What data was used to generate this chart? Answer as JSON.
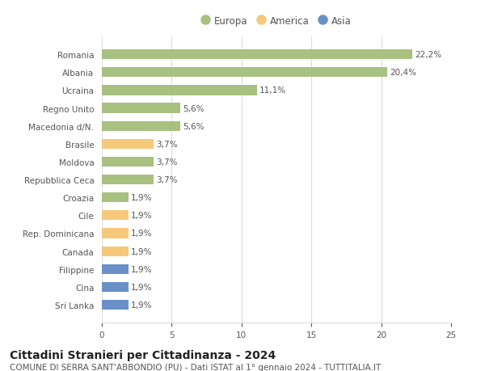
{
  "categories": [
    "Romania",
    "Albania",
    "Ucraina",
    "Regno Unito",
    "Macedonia d/N.",
    "Brasile",
    "Moldova",
    "Repubblica Ceca",
    "Croazia",
    "Cile",
    "Rep. Dominicana",
    "Canada",
    "Filippine",
    "Cina",
    "Sri Lanka"
  ],
  "values": [
    22.2,
    20.4,
    11.1,
    5.6,
    5.6,
    3.7,
    3.7,
    3.7,
    1.9,
    1.9,
    1.9,
    1.9,
    1.9,
    1.9,
    1.9
  ],
  "labels": [
    "22,2%",
    "20,4%",
    "11,1%",
    "5,6%",
    "5,6%",
    "3,7%",
    "3,7%",
    "3,7%",
    "1,9%",
    "1,9%",
    "1,9%",
    "1,9%",
    "1,9%",
    "1,9%",
    "1,9%"
  ],
  "continents": [
    "Europa",
    "Europa",
    "Europa",
    "Europa",
    "Europa",
    "America",
    "Europa",
    "Europa",
    "Europa",
    "America",
    "America",
    "America",
    "Asia",
    "Asia",
    "Asia"
  ],
  "colors": {
    "Europa": "#a8c080",
    "America": "#f5c87a",
    "Asia": "#6b8fc7"
  },
  "legend": [
    "Europa",
    "America",
    "Asia"
  ],
  "legend_colors": [
    "#a8c080",
    "#f5c87a",
    "#6b8fc7"
  ],
  "xlim": [
    0,
    25
  ],
  "xticks": [
    0,
    5,
    10,
    15,
    20,
    25
  ],
  "title": "Cittadini Stranieri per Cittadinanza - 2024",
  "subtitle": "COMUNE DI SERRA SANT'ABBONDIO (PU) - Dati ISTAT al 1° gennaio 2024 - TUTTITALIA.IT",
  "background_color": "#ffffff",
  "grid_color": "#dddddd",
  "bar_height": 0.55,
  "label_fontsize": 7.5,
  "tick_fontsize": 7.5,
  "title_fontsize": 10,
  "subtitle_fontsize": 7.5
}
